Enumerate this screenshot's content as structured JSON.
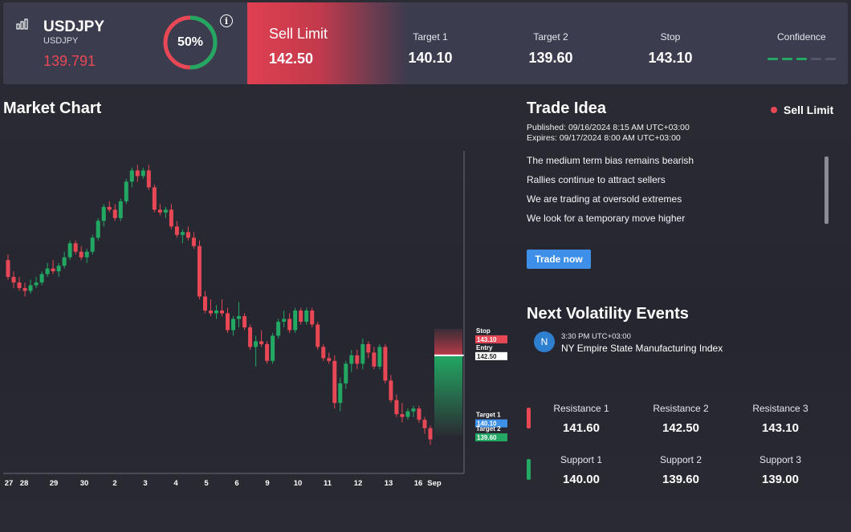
{
  "header": {
    "symbol": "USDJPY",
    "symbol_sub": "USDJPY",
    "price": "139.791",
    "gauge_value": "50%",
    "gauge_fraction": 0.5,
    "info_glyph": "i",
    "order_type": "Sell Limit",
    "entry": "142.50",
    "metrics": [
      {
        "label": "Target 1",
        "value": "140.10"
      },
      {
        "label": "Target 2",
        "value": "139.60"
      },
      {
        "label": "Stop",
        "value": "143.10"
      }
    ],
    "confidence_label": "Confidence",
    "confidence_level": 3,
    "confidence_max": 5,
    "colors": {
      "sell": "#e84855",
      "buy": "#22a863",
      "conf_on": "#22a863",
      "conf_off": "#555766"
    }
  },
  "chart": {
    "title": "Market Chart",
    "x_labels": [
      "27",
      "28",
      "29",
      "30",
      "2",
      "3",
      "4",
      "5",
      "6",
      "9",
      "10",
      "11",
      "12",
      "13",
      "16",
      "Sep"
    ],
    "levels": {
      "stop": {
        "label": "Stop",
        "value": "143.10"
      },
      "entry": {
        "label": "Entry",
        "value": "142.50"
      },
      "target1": {
        "label": "Target 1",
        "value": "140.10"
      },
      "target2": {
        "label": "Target 2",
        "value": "139.60"
      }
    }
  },
  "chart_data": {
    "type": "candlestick",
    "title": "Market Chart",
    "x_ticks": [
      "27",
      "28",
      "29",
      "30",
      "2",
      "3",
      "4",
      "5",
      "6",
      "9",
      "10",
      "11",
      "12",
      "13",
      "16",
      "Sep"
    ],
    "price_levels": {
      "stop": 143.1,
      "entry": 142.5,
      "target1": 140.1,
      "target2": 139.6
    },
    "candles": [
      [
        145.9,
        146.1,
        145.2,
        145.3
      ],
      [
        145.3,
        145.5,
        144.9,
        145.1
      ],
      [
        145.1,
        145.3,
        144.8,
        144.9
      ],
      [
        144.9,
        145.1,
        144.6,
        144.8
      ],
      [
        144.8,
        145.2,
        144.7,
        145.0
      ],
      [
        145.0,
        145.3,
        144.9,
        145.1
      ],
      [
        145.1,
        145.5,
        145.0,
        145.4
      ],
      [
        145.4,
        145.8,
        145.3,
        145.6
      ],
      [
        145.6,
        145.9,
        145.4,
        145.5
      ],
      [
        145.5,
        145.8,
        145.3,
        145.7
      ],
      [
        145.7,
        146.2,
        145.6,
        146.0
      ],
      [
        146.0,
        146.6,
        145.9,
        146.5
      ],
      [
        146.5,
        146.6,
        146.1,
        146.2
      ],
      [
        146.2,
        146.4,
        145.9,
        146.0
      ],
      [
        146.0,
        146.3,
        145.8,
        146.2
      ],
      [
        146.2,
        146.8,
        146.1,
        146.7
      ],
      [
        146.7,
        147.4,
        146.6,
        147.3
      ],
      [
        147.3,
        147.9,
        147.1,
        147.8
      ],
      [
        147.8,
        148.0,
        147.6,
        147.7
      ],
      [
        147.7,
        147.9,
        147.3,
        147.4
      ],
      [
        147.4,
        148.1,
        147.3,
        148.0
      ],
      [
        148.0,
        148.8,
        147.9,
        148.7
      ],
      [
        148.7,
        149.2,
        148.5,
        149.1
      ],
      [
        149.1,
        149.3,
        148.7,
        148.9
      ],
      [
        148.9,
        149.2,
        148.8,
        149.1
      ],
      [
        149.1,
        149.3,
        148.4,
        148.5
      ],
      [
        148.5,
        148.6,
        147.6,
        147.7
      ],
      [
        147.7,
        147.9,
        147.5,
        147.6
      ],
      [
        147.6,
        147.8,
        147.4,
        147.7
      ],
      [
        147.7,
        147.9,
        147.0,
        147.1
      ],
      [
        147.1,
        147.3,
        146.7,
        146.8
      ],
      [
        146.8,
        147.0,
        146.5,
        146.9
      ],
      [
        146.9,
        147.1,
        146.6,
        146.7
      ],
      [
        146.7,
        146.9,
        146.3,
        146.4
      ],
      [
        146.4,
        146.6,
        144.5,
        144.6
      ],
      [
        144.6,
        144.8,
        144.0,
        144.1
      ],
      [
        144.1,
        144.5,
        143.9,
        144.0
      ],
      [
        144.0,
        144.3,
        143.8,
        144.1
      ],
      [
        144.1,
        144.5,
        143.9,
        144.0
      ],
      [
        144.0,
        144.2,
        143.3,
        143.4
      ],
      [
        143.4,
        143.9,
        143.2,
        143.8
      ],
      [
        143.8,
        144.4,
        143.5,
        143.9
      ],
      [
        143.9,
        144.0,
        143.4,
        143.5
      ],
      [
        143.5,
        143.6,
        142.7,
        142.8
      ],
      [
        142.8,
        143.2,
        142.1,
        143.0
      ],
      [
        143.0,
        143.4,
        142.8,
        142.9
      ],
      [
        142.9,
        143.0,
        142.2,
        142.3
      ],
      [
        142.3,
        143.3,
        142.2,
        143.2
      ],
      [
        143.2,
        143.8,
        143.1,
        143.7
      ],
      [
        143.7,
        144.1,
        143.5,
        143.8
      ],
      [
        143.8,
        144.0,
        143.3,
        143.4
      ],
      [
        143.4,
        144.2,
        143.3,
        144.1
      ],
      [
        144.1,
        144.2,
        143.6,
        143.7
      ],
      [
        143.7,
        144.2,
        143.6,
        144.1
      ],
      [
        144.1,
        144.2,
        143.5,
        143.6
      ],
      [
        143.6,
        143.7,
        142.7,
        142.8
      ],
      [
        142.8,
        142.9,
        142.3,
        142.4
      ],
      [
        142.4,
        142.6,
        142.2,
        142.3
      ],
      [
        142.3,
        142.5,
        140.6,
        140.8
      ],
      [
        140.8,
        141.7,
        140.5,
        141.5
      ],
      [
        141.5,
        142.3,
        141.3,
        142.2
      ],
      [
        142.2,
        142.7,
        141.9,
        142.5
      ],
      [
        142.5,
        142.7,
        142.0,
        142.2
      ],
      [
        142.2,
        143.1,
        142.0,
        142.9
      ],
      [
        142.9,
        143.0,
        142.4,
        142.6
      ],
      [
        142.6,
        142.8,
        142.0,
        142.1
      ],
      [
        142.1,
        142.9,
        142.0,
        142.8
      ],
      [
        142.8,
        142.9,
        141.5,
        141.6
      ],
      [
        141.6,
        141.8,
        140.8,
        140.9
      ],
      [
        140.9,
        141.1,
        140.3,
        140.4
      ],
      [
        140.4,
        140.8,
        140.1,
        140.3
      ],
      [
        140.3,
        140.6,
        140.2,
        140.5
      ],
      [
        140.5,
        140.7,
        140.3,
        140.6
      ],
      [
        140.6,
        140.7,
        140.1,
        140.2
      ],
      [
        140.2,
        140.3,
        139.7,
        139.9
      ],
      [
        139.9,
        140.0,
        139.3,
        139.5
      ]
    ]
  },
  "idea": {
    "title": "Trade Idea",
    "badge": "Sell Limit",
    "published": "Published:  09/16/2024 8:15 AM UTC+03:00",
    "expires": "Expires:  09/17/2024 8:00 AM UTC+03:00",
    "bullets": [
      "The medium term bias remains bearish",
      "Rallies continue to attract sellers",
      "We are trading at oversold extremes",
      "We look for a temporary move higher"
    ],
    "button": "Trade now"
  },
  "volatility": {
    "title": "Next Volatility Events",
    "events": [
      {
        "badge": "N",
        "time": "3:30 PM UTC+03:00",
        "name": "NY Empire State Manufacturing Index"
      }
    ]
  },
  "levels": {
    "resistance": [
      {
        "label": "Resistance 1",
        "value": "141.60"
      },
      {
        "label": "Resistance 2",
        "value": "142.50"
      },
      {
        "label": "Resistance 3",
        "value": "143.10"
      }
    ],
    "support": [
      {
        "label": "Support 1",
        "value": "140.00"
      },
      {
        "label": "Support 2",
        "value": "139.60"
      },
      {
        "label": "Support 3",
        "value": "139.00"
      }
    ]
  }
}
